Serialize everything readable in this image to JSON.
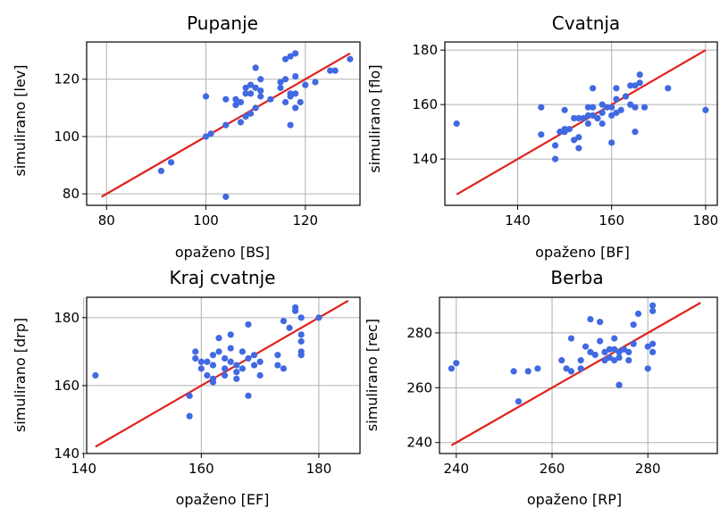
{
  "colors": {
    "points": "#4169e1",
    "line": "#e0201b",
    "grid": "#b0b0b0",
    "axis": "#000000"
  },
  "chart_data": [
    {
      "type": "scatter",
      "title": "Pupanje",
      "xlabel": "opaženo [BS]",
      "ylabel": "simulirano [lev]",
      "xlim": [
        76,
        131
      ],
      "ylim": [
        76,
        133
      ],
      "xticks": [
        80,
        100,
        120
      ],
      "yticks": [
        80,
        100,
        120
      ],
      "xtick_labels": [
        "80",
        "100",
        "120"
      ],
      "ytick_labels": [
        "80",
        "100",
        "120"
      ],
      "grid": true,
      "fit_line": [
        [
          79,
          79
        ],
        [
          129,
          129
        ]
      ],
      "points": [
        [
          91,
          88
        ],
        [
          93,
          91
        ],
        [
          100,
          114
        ],
        [
          101,
          101
        ],
        [
          100,
          100
        ],
        [
          104,
          104
        ],
        [
          104,
          113
        ],
        [
          104,
          79
        ],
        [
          106,
          113
        ],
        [
          106,
          111
        ],
        [
          107,
          105
        ],
        [
          107,
          112
        ],
        [
          108,
          115
        ],
        [
          108,
          117
        ],
        [
          108,
          107
        ],
        [
          109,
          115
        ],
        [
          109,
          118
        ],
        [
          109,
          108
        ],
        [
          110,
          124
        ],
        [
          110,
          110
        ],
        [
          110,
          117
        ],
        [
          111,
          114
        ],
        [
          111,
          120
        ],
        [
          111,
          116
        ],
        [
          113,
          113
        ],
        [
          115,
          117
        ],
        [
          115,
          119
        ],
        [
          116,
          112
        ],
        [
          116,
          127
        ],
        [
          116,
          120
        ],
        [
          117,
          128
        ],
        [
          117,
          104
        ],
        [
          117,
          115
        ],
        [
          117,
          114
        ],
        [
          118,
          115
        ],
        [
          118,
          121
        ],
        [
          118,
          110
        ],
        [
          118,
          129
        ],
        [
          119,
          112
        ],
        [
          120,
          118
        ],
        [
          122,
          119
        ],
        [
          125,
          123
        ],
        [
          126,
          123
        ],
        [
          129,
          127
        ]
      ]
    },
    {
      "type": "scatter",
      "title": "Cvatnja",
      "xlabel": "opaženo [BF]",
      "ylabel": "simulirano [flo]",
      "xlim": [
        124.5,
        182.5
      ],
      "ylim": [
        123,
        183
      ],
      "xticks": [
        140,
        160,
        180
      ],
      "yticks": [
        140,
        160,
        180
      ],
      "xtick_labels": [
        "140",
        "160",
        "180"
      ],
      "ytick_labels": [
        "140",
        "160",
        "180"
      ],
      "grid": true,
      "fit_line": [
        [
          127,
          127
        ],
        [
          180,
          180
        ]
      ],
      "points": [
        [
          127,
          153
        ],
        [
          145,
          159
        ],
        [
          145,
          149
        ],
        [
          148,
          140
        ],
        [
          148,
          145
        ],
        [
          149,
          150
        ],
        [
          150,
          150
        ],
        [
          150,
          158
        ],
        [
          150,
          151
        ],
        [
          151,
          151
        ],
        [
          152,
          155
        ],
        [
          152,
          147
        ],
        [
          153,
          148
        ],
        [
          153,
          155
        ],
        [
          153,
          144
        ],
        [
          154,
          155
        ],
        [
          155,
          153
        ],
        [
          155,
          159
        ],
        [
          155,
          156
        ],
        [
          156,
          166
        ],
        [
          156,
          156
        ],
        [
          156,
          159
        ],
        [
          157,
          155
        ],
        [
          157,
          155
        ],
        [
          158,
          153
        ],
        [
          158,
          157
        ],
        [
          158,
          160
        ],
        [
          159,
          159
        ],
        [
          160,
          156
        ],
        [
          160,
          146
        ],
        [
          160,
          159
        ],
        [
          161,
          162
        ],
        [
          161,
          157
        ],
        [
          161,
          166
        ],
        [
          162,
          158
        ],
        [
          163,
          163
        ],
        [
          163,
          163
        ],
        [
          164,
          160
        ],
        [
          164,
          167
        ],
        [
          165,
          167
        ],
        [
          165,
          150
        ],
        [
          165,
          159
        ],
        [
          166,
          171
        ],
        [
          166,
          168
        ],
        [
          167,
          159
        ],
        [
          172,
          166
        ],
        [
          180,
          158
        ]
      ]
    },
    {
      "type": "scatter",
      "title": "Kraj cvatnje",
      "xlabel": "opaženo [EF]",
      "ylabel": "simulirano [drp]",
      "xlim": [
        140.5,
        187
      ],
      "ylim": [
        140,
        186
      ],
      "xticks": [
        140,
        160,
        180
      ],
      "yticks": [
        140,
        160,
        180
      ],
      "xtick_labels": [
        "140",
        "160",
        "180"
      ],
      "ytick_labels": [
        "140",
        "160",
        "180"
      ],
      "grid": true,
      "fit_line": [
        [
          142,
          142
        ],
        [
          185,
          185
        ]
      ],
      "points": [
        [
          142,
          163
        ],
        [
          158,
          151
        ],
        [
          158,
          157
        ],
        [
          159,
          168
        ],
        [
          159,
          170
        ],
        [
          160,
          165
        ],
        [
          160,
          167
        ],
        [
          161,
          163
        ],
        [
          161,
          167
        ],
        [
          162,
          162
        ],
        [
          162,
          169
        ],
        [
          162,
          166
        ],
        [
          162,
          161
        ],
        [
          163,
          174
        ],
        [
          163,
          170
        ],
        [
          164,
          168
        ],
        [
          164,
          165
        ],
        [
          164,
          163
        ],
        [
          165,
          175
        ],
        [
          165,
          171
        ],
        [
          165,
          167
        ],
        [
          166,
          166
        ],
        [
          166,
          162
        ],
        [
          166,
          164
        ],
        [
          167,
          165
        ],
        [
          167,
          170
        ],
        [
          168,
          168
        ],
        [
          168,
          157
        ],
        [
          168,
          178
        ],
        [
          169,
          166
        ],
        [
          169,
          169
        ],
        [
          170,
          167
        ],
        [
          170,
          163
        ],
        [
          173,
          166
        ],
        [
          173,
          169
        ],
        [
          174,
          165
        ],
        [
          174,
          179
        ],
        [
          175,
          177
        ],
        [
          176,
          182
        ],
        [
          176,
          183
        ],
        [
          177,
          173
        ],
        [
          177,
          175
        ],
        [
          177,
          170
        ],
        [
          177,
          169
        ],
        [
          177,
          180
        ],
        [
          180,
          180
        ]
      ]
    },
    {
      "type": "scatter",
      "title": "Berba",
      "xlabel": "opaženo [RP]",
      "ylabel": "simulirano [rec]",
      "xlim": [
        236.5,
        294.5
      ],
      "ylim": [
        236,
        293
      ],
      "xticks": [
        240,
        260,
        280
      ],
      "yticks": [
        240,
        260,
        280
      ],
      "xtick_labels": [
        "240",
        "260",
        "280"
      ],
      "ytick_labels": [
        "240",
        "260",
        "280"
      ],
      "grid": true,
      "fit_line": [
        [
          239,
          239
        ],
        [
          291,
          291
        ]
      ],
      "points": [
        [
          239,
          267
        ],
        [
          240,
          269
        ],
        [
          252,
          266
        ],
        [
          253,
          255
        ],
        [
          255,
          266
        ],
        [
          257,
          267
        ],
        [
          262,
          270
        ],
        [
          263,
          267
        ],
        [
          264,
          266
        ],
        [
          264,
          278
        ],
        [
          266,
          267
        ],
        [
          266,
          270
        ],
        [
          267,
          275
        ],
        [
          268,
          273
        ],
        [
          268,
          285
        ],
        [
          269,
          272
        ],
        [
          270,
          277
        ],
        [
          270,
          284
        ],
        [
          271,
          270
        ],
        [
          271,
          273
        ],
        [
          272,
          271
        ],
        [
          272,
          274
        ],
        [
          273,
          278
        ],
        [
          273,
          270
        ],
        [
          273,
          274
        ],
        [
          274,
          271
        ],
        [
          274,
          273
        ],
        [
          274,
          261
        ],
        [
          274,
          261
        ],
        [
          275,
          274
        ],
        [
          276,
          273
        ],
        [
          276,
          270
        ],
        [
          277,
          283
        ],
        [
          277,
          276
        ],
        [
          278,
          287
        ],
        [
          280,
          275
        ],
        [
          280,
          267
        ],
        [
          281,
          273
        ],
        [
          281,
          276
        ],
        [
          281,
          290
        ],
        [
          281,
          288
        ]
      ]
    }
  ]
}
